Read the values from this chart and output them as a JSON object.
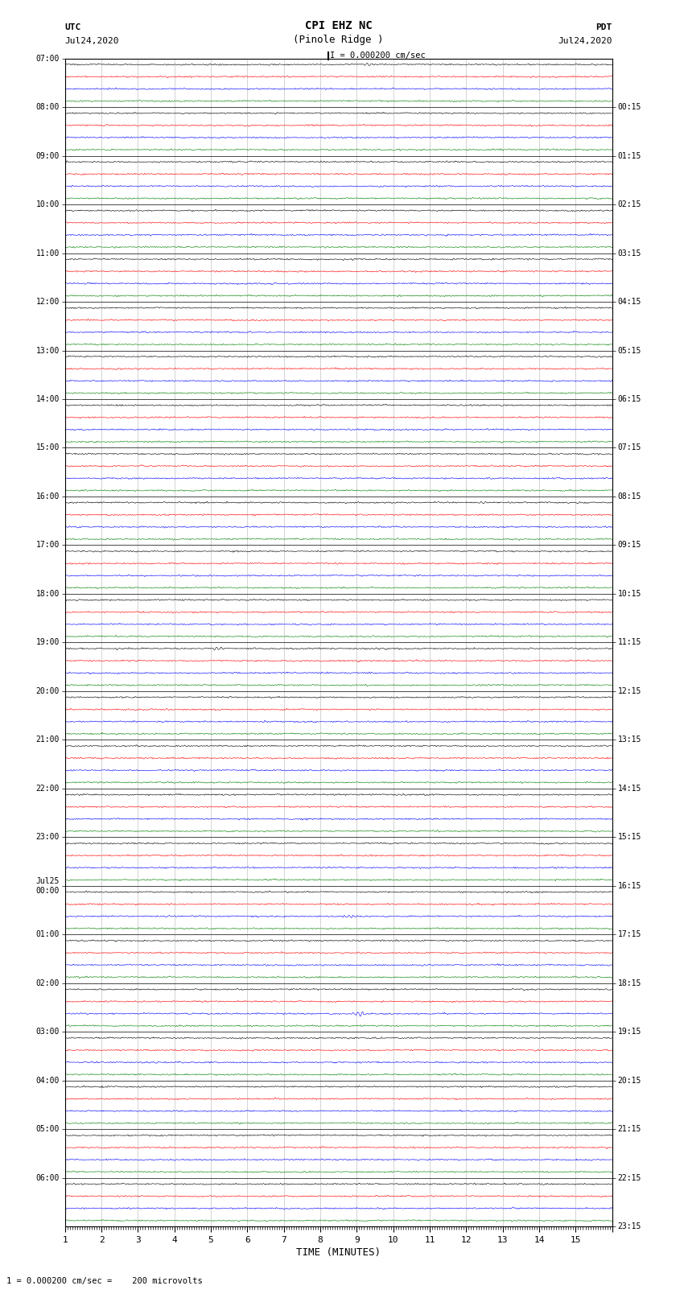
{
  "title_line1": "CPI EHZ NC",
  "title_line2": "(Pinole Ridge )",
  "scale_label": "I = 0.000200 cm/sec",
  "bottom_note": "1 = 0.000200 cm/sec =    200 microvolts",
  "utc_label": "UTC",
  "utc_date": "Jul24,2020",
  "pdt_label": "PDT",
  "pdt_date": "Jul24,2020",
  "xlabel": "TIME (MINUTES)",
  "xmin": 0,
  "xmax": 15,
  "fig_width": 8.5,
  "fig_height": 16.13,
  "dpi": 100,
  "background_color": "#ffffff",
  "trace_colors": [
    "black",
    "red",
    "blue",
    "green"
  ],
  "utc_times": [
    "07:00",
    "08:00",
    "09:00",
    "10:00",
    "11:00",
    "12:00",
    "13:00",
    "14:00",
    "15:00",
    "16:00",
    "17:00",
    "18:00",
    "19:00",
    "20:00",
    "21:00",
    "22:00",
    "23:00",
    "Jul25\n00:00",
    "01:00",
    "02:00",
    "03:00",
    "04:00",
    "05:00",
    "06:00"
  ],
  "pdt_times": [
    "00:15",
    "01:15",
    "02:15",
    "03:15",
    "04:15",
    "05:15",
    "06:15",
    "07:15",
    "08:15",
    "09:15",
    "10:15",
    "11:15",
    "12:15",
    "13:15",
    "14:15",
    "15:15",
    "16:15",
    "17:15",
    "18:15",
    "19:15",
    "20:15",
    "21:15",
    "22:15",
    "23:15"
  ],
  "num_rows": 24,
  "traces_per_row": 4,
  "noise_seed": 12345,
  "trace_amplitude": 0.1,
  "trace_linewidth": 0.4,
  "grid_linewidth": 0.5,
  "grid_color": "#aaaaaa"
}
